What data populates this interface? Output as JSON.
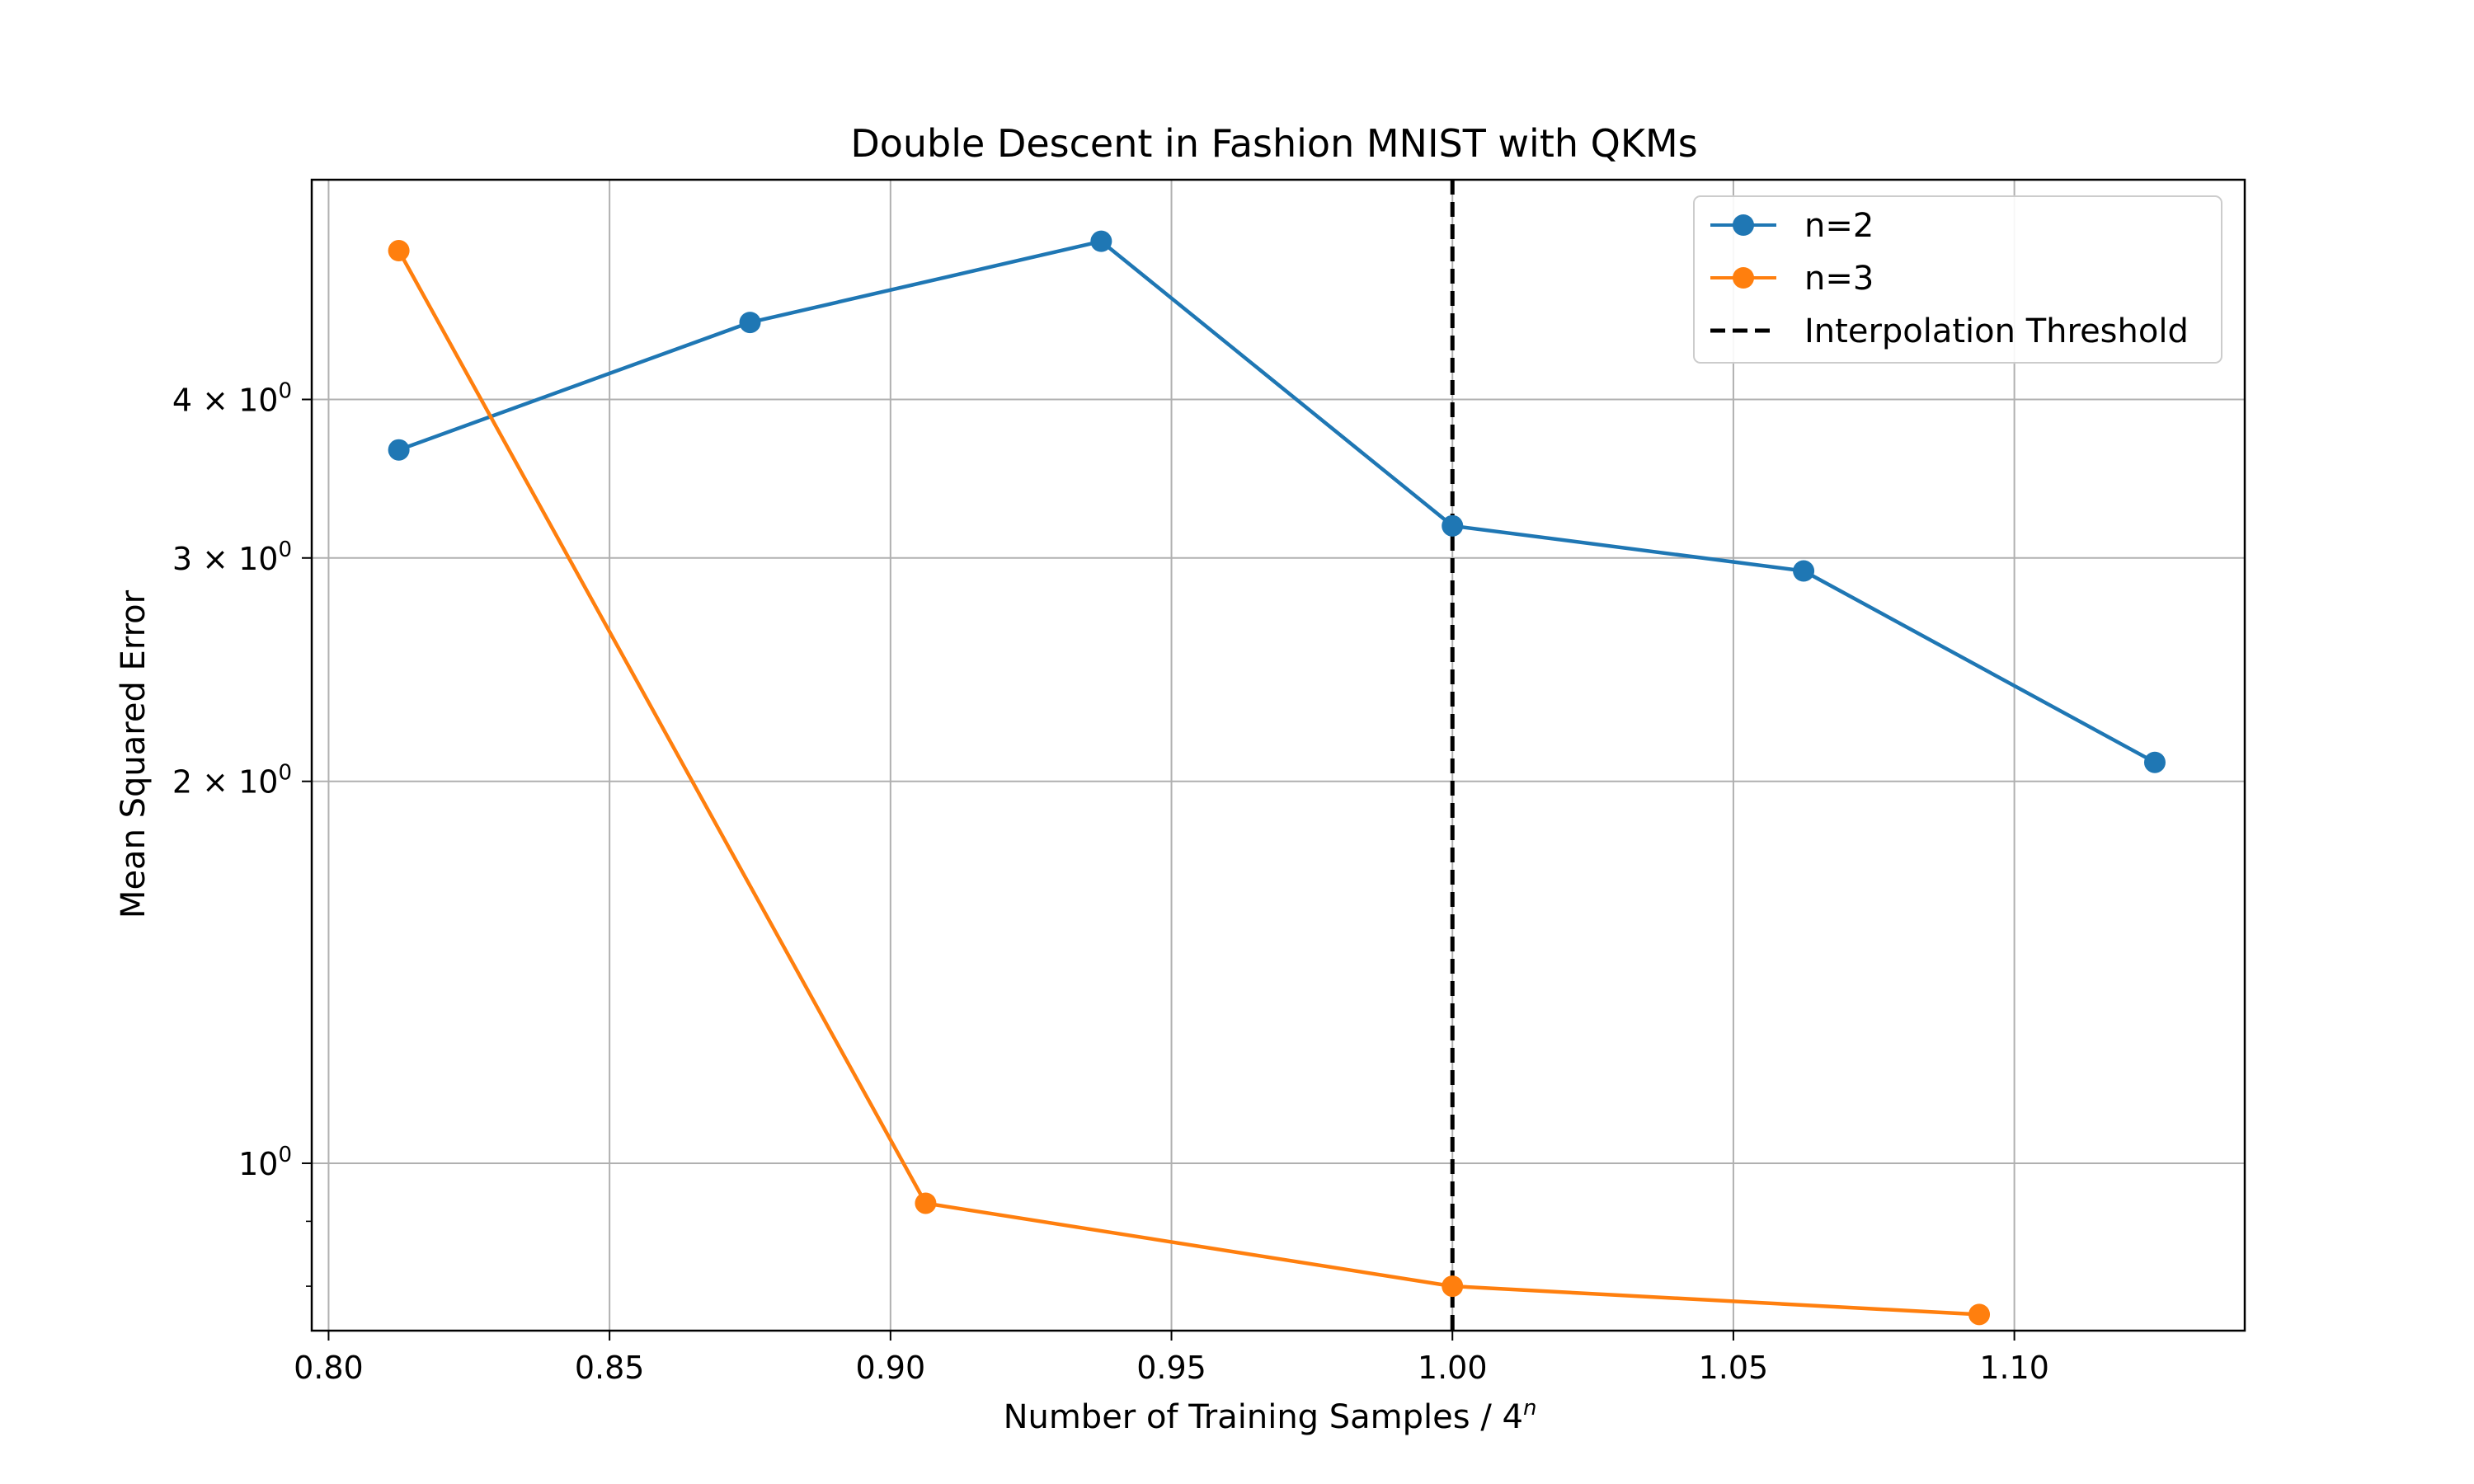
{
  "chart_data": {
    "type": "line",
    "title": "Double Descent in Fashion MNIST with QKMs",
    "xlabel": "Number of Training Samples / 4",
    "xlabel_superscript": "n",
    "ylabel": "Mean Squared Error",
    "y_scale": "log",
    "xlim": [
      0.797,
      1.141
    ],
    "ylim": [
      0.738,
      5.96
    ],
    "x_ticks": [
      0.8,
      0.85,
      0.9,
      0.95,
      1.0,
      1.05,
      1.1
    ],
    "x_tick_labels": [
      "0.80",
      "0.85",
      "0.90",
      "0.95",
      "1.00",
      "1.05",
      "1.10"
    ],
    "y_ticks": [
      1,
      2,
      3,
      4
    ],
    "y_tick_labels": [
      {
        "mantissa": "",
        "exponent": "0"
      },
      {
        "mantissa": "2",
        "exponent": "0"
      },
      {
        "mantissa": "3",
        "exponent": "0"
      },
      {
        "mantissa": "4",
        "exponent": "0"
      }
    ],
    "y_minor_ticks": [
      0.8,
      0.9
    ],
    "grid": true,
    "legend_position": "top-right",
    "series": [
      {
        "name": "n=2",
        "color": "#1f77b4",
        "marker": "circle",
        "x": [
          0.8125,
          0.875,
          0.9375,
          1.0,
          1.0625,
          1.125
        ],
        "y": [
          3.65,
          4.6,
          5.33,
          3.18,
          2.93,
          2.07
        ]
      },
      {
        "name": "n=3",
        "color": "#ff7f0e",
        "marker": "circle",
        "x": [
          0.8125,
          0.90625,
          1.0,
          1.09375
        ],
        "y": [
          5.24,
          0.93,
          0.8,
          0.76
        ]
      }
    ],
    "threshold": {
      "name": "Interpolation Threshold",
      "x": 1.0,
      "color": "#000000",
      "style": "dashed"
    }
  }
}
